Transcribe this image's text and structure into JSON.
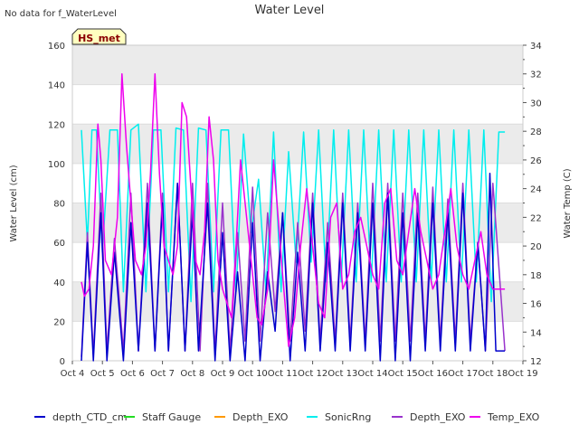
{
  "chart_data": {
    "type": "line",
    "title": "Water Level",
    "note": "No data for f_WaterLevel",
    "badge": "HS_met",
    "ylabel_left": "Water Level (cm)",
    "ylabel_right": "Water Temp (C)",
    "ylim_left": [
      0,
      160
    ],
    "ylim_right": [
      12,
      34
    ],
    "left_ticks": [
      0,
      20,
      40,
      60,
      80,
      100,
      120,
      140,
      160
    ],
    "right_ticks": [
      12,
      14,
      16,
      18,
      20,
      22,
      24,
      26,
      28,
      30,
      32,
      34
    ],
    "x_ticks": [
      "Oct 4",
      "Oct 5",
      "Oct 6",
      "Oct 7",
      "Oct 8",
      "Oct 9",
      "Oct 10",
      "Oct 11",
      "Oct 12",
      "Oct 13",
      "Oct 14",
      "Oct 15",
      "Oct 16",
      "Oct 17",
      "Oct 18",
      "Oct 19"
    ],
    "x_unit": "days from Oct 4",
    "xlim": [
      0,
      15
    ],
    "legend": [
      "depth_CTD_cm",
      "Staff Gauge",
      "Depth_EXO",
      "SonicRng",
      "Depth_EXO",
      "Temp_EXO"
    ],
    "colors": {
      "depth_CTD_cm": "#0000cc",
      "Staff Gauge": "#22dd22",
      "Depth_EXO_orange": "#ff9900",
      "SonicRng": "#00eeee",
      "Depth_EXO": "#9933cc",
      "Temp_EXO": "#ee00ee",
      "band": "#ebebeb",
      "badge_bg": "#ffffc0",
      "badge_text": "#8b0000"
    },
    "series": [
      {
        "name": "depth_CTD_cm",
        "axis": "left",
        "x": [
          0.3,
          0.5,
          0.7,
          0.95,
          1.15,
          1.4,
          1.7,
          1.95,
          2.2,
          2.5,
          2.75,
          3.0,
          3.2,
          3.5,
          3.75,
          4.0,
          4.2,
          4.5,
          4.75,
          5.0,
          5.25,
          5.5,
          5.75,
          6.0,
          6.25,
          6.5,
          6.75,
          7.0,
          7.25,
          7.5,
          7.75,
          8.0,
          8.25,
          8.5,
          8.75,
          9.0,
          9.25,
          9.5,
          9.75,
          10.0,
          10.25,
          10.5,
          10.75,
          11.0,
          11.25,
          11.5,
          11.75,
          12.0,
          12.25,
          12.5,
          12.75,
          13.0,
          13.25,
          13.5,
          13.75,
          13.9,
          14.1,
          14.4
        ],
        "y": [
          0,
          60,
          0,
          75,
          0,
          55,
          0,
          70,
          5,
          80,
          5,
          80,
          5,
          90,
          5,
          75,
          5,
          80,
          0,
          65,
          0,
          45,
          0,
          70,
          0,
          45,
          15,
          75,
          0,
          55,
          5,
          80,
          5,
          60,
          5,
          80,
          5,
          75,
          5,
          80,
          0,
          85,
          0,
          75,
          0,
          75,
          5,
          80,
          5,
          75,
          5,
          85,
          5,
          60,
          5,
          95,
          5,
          5
        ]
      },
      {
        "name": "SonicRng",
        "axis": "left",
        "x": [
          0.3,
          0.5,
          0.65,
          0.8,
          1.0,
          1.25,
          1.5,
          1.7,
          1.95,
          2.2,
          2.45,
          2.7,
          2.95,
          3.2,
          3.45,
          3.7,
          3.95,
          4.2,
          4.45,
          4.7,
          4.95,
          5.2,
          5.45,
          5.7,
          5.95,
          6.2,
          6.45,
          6.7,
          6.95,
          7.2,
          7.45,
          7.7,
          7.95,
          8.2,
          8.45,
          8.7,
          8.95,
          9.2,
          9.45,
          9.7,
          9.95,
          10.2,
          10.45,
          10.7,
          10.95,
          11.2,
          11.45,
          11.7,
          11.95,
          12.2,
          12.45,
          12.7,
          12.95,
          13.2,
          13.45,
          13.7,
          13.95,
          14.2,
          14.4
        ],
        "y": [
          117,
          60,
          117,
          117,
          55,
          117,
          117,
          35,
          117,
          120,
          35,
          117,
          117,
          35,
          118,
          117,
          30,
          118,
          117,
          35,
          117,
          117,
          35,
          115,
          65,
          92,
          35,
          116,
          35,
          106,
          50,
          116,
          50,
          117,
          40,
          117,
          40,
          117,
          40,
          117,
          40,
          117,
          40,
          117,
          40,
          117,
          40,
          117,
          40,
          117,
          40,
          117,
          40,
          117,
          40,
          117,
          30,
          116,
          116
        ]
      },
      {
        "name": "Depth_EXO",
        "axis": "left",
        "x": [
          0.3,
          0.5,
          0.7,
          0.95,
          1.15,
          1.4,
          1.7,
          1.95,
          2.2,
          2.5,
          2.75,
          3.0,
          3.2,
          3.5,
          3.75,
          4.0,
          4.25,
          4.5,
          4.75,
          5.0,
          5.25,
          5.5,
          5.75,
          6.0,
          6.25,
          6.5,
          6.75,
          7.0,
          7.25,
          7.5,
          7.75,
          8.0,
          8.25,
          8.5,
          8.75,
          9.0,
          9.25,
          9.5,
          9.75,
          10.0,
          10.25,
          10.5,
          10.75,
          11.0,
          11.25,
          11.5,
          11.75,
          12.0,
          12.25,
          12.5,
          12.75,
          13.0,
          13.25,
          13.5,
          13.75,
          14.0,
          14.4
        ],
        "y": [
          2,
          65,
          3,
          85,
          5,
          62,
          5,
          85,
          5,
          90,
          5,
          85,
          5,
          90,
          5,
          90,
          5,
          90,
          5,
          80,
          5,
          65,
          10,
          88,
          10,
          75,
          25,
          75,
          10,
          70,
          15,
          85,
          10,
          70,
          10,
          85,
          10,
          80,
          10,
          90,
          10,
          90,
          10,
          85,
          10,
          85,
          10,
          88,
          10,
          82,
          10,
          90,
          10,
          60,
          5,
          90,
          5
        ]
      },
      {
        "name": "Temp_EXO",
        "axis": "right",
        "x": [
          0.3,
          0.4,
          0.55,
          0.7,
          0.85,
          0.95,
          1.1,
          1.3,
          1.5,
          1.65,
          1.8,
          1.95,
          2.1,
          2.3,
          2.45,
          2.6,
          2.75,
          2.9,
          3.05,
          3.2,
          3.35,
          3.5,
          3.65,
          3.8,
          3.95,
          4.1,
          4.25,
          4.4,
          4.55,
          4.7,
          4.85,
          5.0,
          5.15,
          5.3,
          5.45,
          5.6,
          5.8,
          6.0,
          6.15,
          6.3,
          6.5,
          6.7,
          6.85,
          7.0,
          7.2,
          7.4,
          7.6,
          7.8,
          8.0,
          8.2,
          8.4,
          8.6,
          8.8,
          9.0,
          9.2,
          9.4,
          9.6,
          9.8,
          10.0,
          10.2,
          10.4,
          10.6,
          10.8,
          11.0,
          11.2,
          11.4,
          11.6,
          11.8,
          12.0,
          12.2,
          12.4,
          12.6,
          12.8,
          13.0,
          13.2,
          13.4,
          13.6,
          13.8,
          14.0,
          14.2,
          14.4
        ],
        "y": [
          17.5,
          16.5,
          17,
          20,
          28.5,
          26,
          19,
          18,
          22,
          32,
          27,
          23,
          19,
          18,
          20,
          25,
          32,
          25,
          20,
          19,
          18,
          20,
          30,
          29,
          24,
          19,
          18,
          21,
          29,
          26,
          19,
          17,
          16,
          15,
          20,
          26,
          22,
          18,
          15,
          14.5,
          17,
          26,
          22,
          18,
          13,
          15,
          20,
          24,
          20,
          16,
          15,
          22,
          23,
          17,
          18,
          21,
          22,
          20,
          18,
          17,
          23,
          24,
          19,
          18,
          21,
          24,
          21,
          19,
          17,
          18,
          21,
          24,
          20,
          18,
          17,
          19,
          21,
          18,
          17,
          17,
          17
        ]
      }
    ]
  }
}
